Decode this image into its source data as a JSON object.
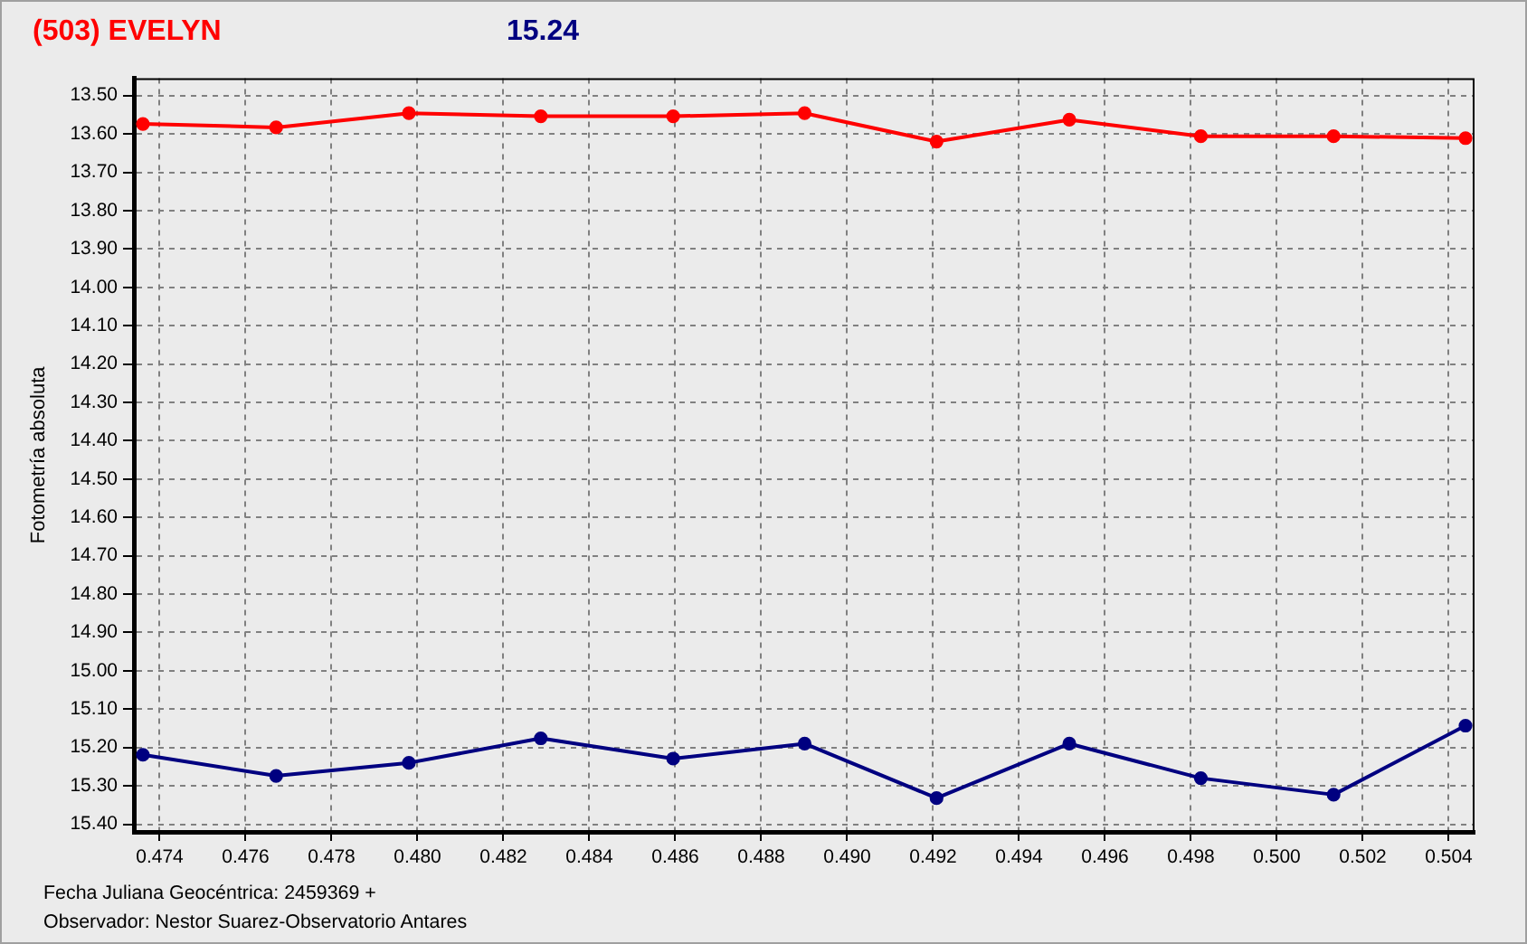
{
  "chart_data": {
    "type": "line",
    "title": "(503) EVELYN",
    "subtitle": "15.24",
    "xlabel": "Fecha Juliana Geocéntrica: 2459369 +",
    "ylabel": "Fotometría absoluta",
    "annotations": [
      "Observador: Nestor Suarez-Observatorio Antares"
    ],
    "x": [
      0.47361,
      0.47671,
      0.4798,
      0.48287,
      0.48595,
      0.48901,
      0.49208,
      0.49517,
      0.49823,
      0.50132,
      0.50439
    ],
    "series": [
      {
        "color": "#ff0000",
        "values": [
          13.574,
          13.583,
          13.546,
          13.554,
          13.554,
          13.546,
          13.62,
          13.563,
          13.606,
          13.606,
          13.611
        ]
      },
      {
        "color": "#000080",
        "values": [
          15.219,
          15.274,
          15.24,
          15.176,
          15.229,
          15.19,
          15.332,
          15.19,
          15.28,
          15.323,
          15.143
        ]
      }
    ],
    "xlim": [
      0.4734,
      0.5046
    ],
    "ylim": [
      15.42,
      13.455
    ],
    "xticks": [
      0.474,
      0.476,
      0.478,
      {
        "value": 0.48,
        "label": "0.480"
      },
      0.482,
      0.484,
      0.486,
      0.488,
      {
        "value": 0.49,
        "label": "0.490"
      },
      0.492,
      0.494,
      0.496,
      0.498,
      {
        "value": 0.5,
        "label": "0.500"
      },
      0.502,
      0.504
    ],
    "yticks": [
      {
        "value": 13.5,
        "label": "13.50"
      },
      {
        "value": 13.6,
        "label": "13.60"
      },
      {
        "value": 13.7,
        "label": "13.70"
      },
      {
        "value": 13.8,
        "label": "13.80"
      },
      {
        "value": 13.9,
        "label": "13.90"
      },
      {
        "value": 14,
        "label": "14.00"
      },
      {
        "value": 14.1,
        "label": "14.10"
      },
      {
        "value": 14.2,
        "label": "14.20"
      },
      {
        "value": 14.3,
        "label": "14.30"
      },
      {
        "value": 14.4,
        "label": "14.40"
      },
      {
        "value": 14.5,
        "label": "14.50"
      },
      {
        "value": 14.6,
        "label": "14.60"
      },
      {
        "value": 14.7,
        "label": "14.70"
      },
      {
        "value": 14.8,
        "label": "14.80"
      },
      {
        "value": 14.9,
        "label": "14.90"
      },
      {
        "value": 15,
        "label": "15.00"
      },
      {
        "value": 15.1,
        "label": "15.10"
      },
      {
        "value": 15.2,
        "label": "15.20"
      },
      {
        "value": 15.3,
        "label": "15.30"
      },
      {
        "value": 15.4,
        "label": "15.40"
      }
    ],
    "grid": true,
    "legend": false,
    "marker": "circle",
    "line_style": "solid"
  }
}
